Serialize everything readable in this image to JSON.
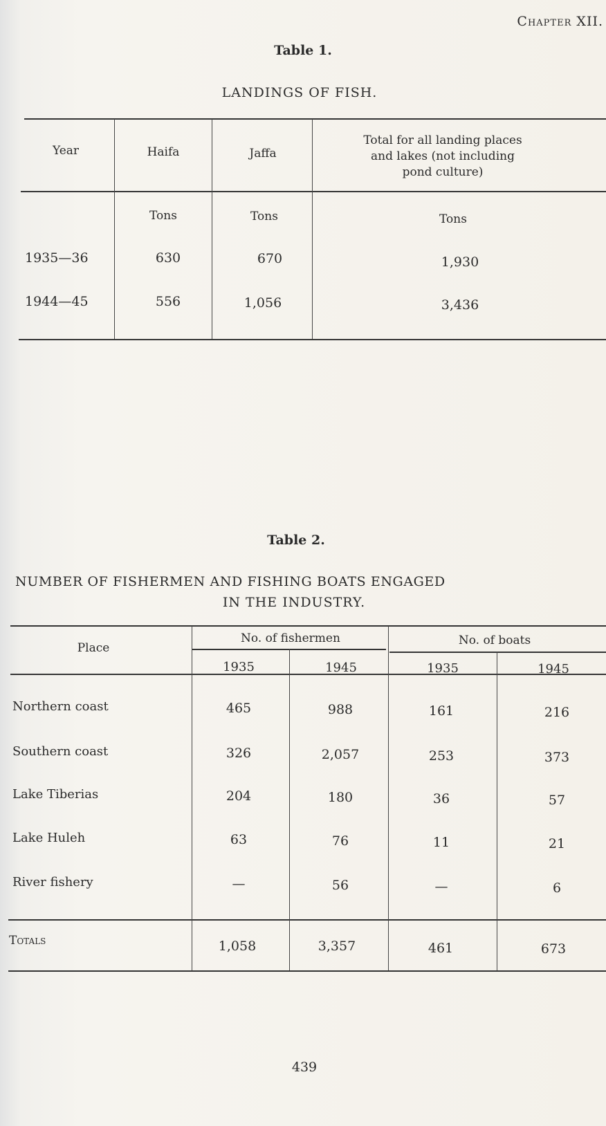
{
  "header": {
    "chapter": "Chapter XII."
  },
  "table1": {
    "label": "Table 1.",
    "title": "LANDINGS OF FISH.",
    "columns": [
      "Year",
      "Haifa",
      "Jaffa",
      "Total for all landing places",
      "and lakes (not including",
      "pond culture)"
    ],
    "units": [
      "Tons",
      "Tons",
      "Tons"
    ],
    "rows": [
      {
        "year": "1935—36",
        "haifa": "630",
        "jaffa": "670",
        "total": "1,930"
      },
      {
        "year": "1944—45",
        "haifa": "556",
        "jaffa": "1,056",
        "total": "3,436"
      }
    ]
  },
  "table2": {
    "label": "Table 2.",
    "title_line1": "NUMBER OF FISHERMEN AND FISHING BOATS ENGAGED",
    "title_line2": "IN THE INDUSTRY.",
    "place_header": "Place",
    "group_fishermen": "No. of fishermen",
    "group_boats": "No. of boats",
    "years": [
      "1935",
      "1945",
      "1935",
      "1945"
    ],
    "rows": [
      {
        "place": "Northern coast",
        "values": [
          "465",
          "988",
          "161",
          "216"
        ]
      },
      {
        "place": "Southern coast",
        "values": [
          "326",
          "2,057",
          "253",
          "373"
        ]
      },
      {
        "place": "Lake Tiberias",
        "values": [
          "204",
          "180",
          "36",
          "57"
        ]
      },
      {
        "place": "Lake Huleh",
        "values": [
          "63",
          "76",
          "11",
          "21"
        ]
      },
      {
        "place": "River fishery",
        "values": [
          "—",
          "56",
          "—",
          "6"
        ]
      }
    ],
    "totals": {
      "label": "Totals",
      "values": [
        "1,058",
        "3,357",
        "461",
        "673"
      ]
    }
  },
  "footer": {
    "page_number": "439"
  }
}
